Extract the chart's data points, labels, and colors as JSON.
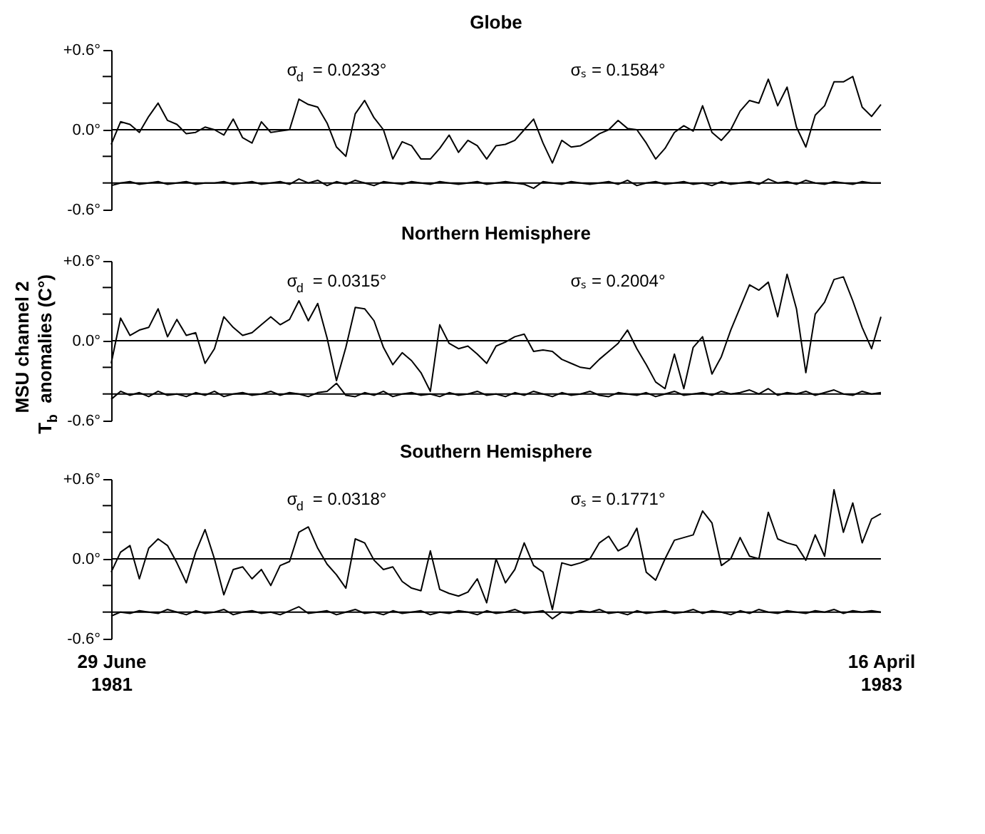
{
  "chart_data": [
    {
      "type": "line",
      "title": "Globe",
      "annotations": [
        "σ$_{d}$ = 0.0233°",
        "σₛ = 0.1584°"
      ],
      "x": [
        "1981-06-29",
        "1981-07-07",
        "1981-07-15",
        "1981-07-23",
        "1981-07-31",
        "1981-08-08",
        "1981-08-16",
        "1981-08-24",
        "1981-09-01",
        "1981-09-09",
        "1981-09-17",
        "1981-09-25",
        "1981-10-03",
        "1981-10-11",
        "1981-10-19",
        "1981-10-27",
        "1981-11-04",
        "1981-11-12",
        "1981-11-20",
        "1981-11-28",
        "1981-12-06",
        "1981-12-14",
        "1981-12-22",
        "1981-12-30",
        "1982-01-07",
        "1982-01-15",
        "1982-01-23",
        "1982-01-31",
        "1982-02-08",
        "1982-02-16",
        "1982-02-24",
        "1982-03-04",
        "1982-03-12",
        "1982-03-20",
        "1982-03-28",
        "1982-04-05",
        "1982-04-13",
        "1982-04-21",
        "1982-04-29",
        "1982-05-07",
        "1982-05-15",
        "1982-05-23",
        "1982-05-31",
        "1982-06-08",
        "1982-06-16",
        "1982-06-24",
        "1982-07-02",
        "1982-07-10",
        "1982-07-18",
        "1982-07-26",
        "1982-08-03",
        "1982-08-11",
        "1982-08-19",
        "1982-08-27",
        "1982-09-04",
        "1982-09-12",
        "1982-09-20",
        "1982-09-28",
        "1982-10-06",
        "1982-10-14",
        "1982-10-22",
        "1982-10-30",
        "1982-11-07",
        "1982-11-15",
        "1982-11-23",
        "1982-12-01",
        "1982-12-09",
        "1982-12-17",
        "1982-12-25",
        "1983-01-02",
        "1983-01-10",
        "1983-01-18",
        "1983-01-26",
        "1983-02-03",
        "1983-02-11",
        "1983-02-19",
        "1983-02-27",
        "1983-03-07",
        "1983-03-15",
        "1983-03-23",
        "1983-03-31",
        "1983-04-08",
        "1983-04-16"
      ],
      "series": [
        {
          "color": "#000000",
          "values": [
            -0.11,
            0.06,
            0.04,
            -0.02,
            0.1,
            0.2,
            0.07,
            0.04,
            -0.03,
            -0.02,
            0.02,
            0.0,
            -0.04,
            0.08,
            -0.06,
            -0.1,
            0.06,
            -0.02,
            -0.01,
            0.0,
            0.23,
            0.19,
            0.17,
            0.05,
            -0.13,
            -0.2,
            0.12,
            0.22,
            0.09,
            0.0,
            -0.22,
            -0.09,
            -0.12,
            -0.22,
            -0.22,
            -0.14,
            -0.04,
            -0.17,
            -0.08,
            -0.12,
            -0.22,
            -0.12,
            -0.11,
            -0.08,
            0.0,
            0.08,
            -0.1,
            -0.25,
            -0.08,
            -0.13,
            -0.12,
            -0.08,
            -0.03,
            0.0,
            0.07,
            0.01,
            0.0,
            -0.1,
            -0.22,
            -0.14,
            -0.02,
            0.03,
            -0.01,
            0.18,
            -0.02,
            -0.08,
            0.0,
            0.14,
            0.22,
            0.2,
            0.38,
            0.18,
            0.32,
            0.02,
            -0.13,
            0.11,
            0.18,
            0.36,
            0.36,
            0.4,
            0.17,
            0.1,
            0.19
          ]
        },
        {
          "color": "#000000",
          "values": [
            -0.42,
            -0.4,
            -0.39,
            -0.41,
            -0.4,
            -0.39,
            -0.41,
            -0.4,
            -0.39,
            -0.41,
            -0.4,
            -0.4,
            -0.39,
            -0.41,
            -0.4,
            -0.39,
            -0.41,
            -0.4,
            -0.39,
            -0.41,
            -0.37,
            -0.4,
            -0.38,
            -0.42,
            -0.39,
            -0.41,
            -0.38,
            -0.4,
            -0.42,
            -0.39,
            -0.4,
            -0.41,
            -0.39,
            -0.4,
            -0.41,
            -0.39,
            -0.4,
            -0.41,
            -0.4,
            -0.39,
            -0.41,
            -0.4,
            -0.39,
            -0.4,
            -0.41,
            -0.44,
            -0.39,
            -0.4,
            -0.41,
            -0.39,
            -0.4,
            -0.41,
            -0.4,
            -0.39,
            -0.41,
            -0.38,
            -0.42,
            -0.4,
            -0.39,
            -0.41,
            -0.4,
            -0.39,
            -0.41,
            -0.4,
            -0.42,
            -0.39,
            -0.41,
            -0.4,
            -0.39,
            -0.41,
            -0.37,
            -0.4,
            -0.39,
            -0.41,
            -0.38,
            -0.4,
            -0.41,
            -0.39,
            -0.4,
            -0.41,
            -0.39,
            -0.4,
            -0.4
          ]
        }
      ],
      "xlim": [
        "1981-06-29",
        "1983-04-16"
      ],
      "ylim": [
        -0.6,
        0.6
      ],
      "yticks": [
        {
          "value": -0.6,
          "label": "-0.6°"
        },
        {
          "value": -0.4,
          "label": null
        },
        {
          "value": -0.2,
          "label": null
        },
        {
          "value": 0.0,
          "label": "0.0°"
        },
        {
          "value": 0.2,
          "label": null
        },
        {
          "value": 0.4,
          "label": null
        },
        {
          "value": 0.6,
          "label": "+0.6°"
        }
      ],
      "ref_lines": [
        {
          "axis": "y",
          "value": 0.0,
          "color": "#000000"
        },
        {
          "axis": "y",
          "value": -0.4,
          "color": "#000000"
        }
      ],
      "tick_labels": "y",
      "grid": false
    },
    {
      "type": "line",
      "title": "Northern Hemisphere",
      "ylabel": "MSU channel 2\nT$_{b}$ anomalies (C°)",
      "annotations": [
        "σ$_{d}$ = 0.0315°",
        "σₛ = 0.2004°"
      ],
      "x": [
        "1981-06-29",
        "1981-07-07",
        "1981-07-15",
        "1981-07-23",
        "1981-07-31",
        "1981-08-08",
        "1981-08-16",
        "1981-08-24",
        "1981-09-01",
        "1981-09-09",
        "1981-09-17",
        "1981-09-25",
        "1981-10-03",
        "1981-10-11",
        "1981-10-19",
        "1981-10-27",
        "1981-11-04",
        "1981-11-12",
        "1981-11-20",
        "1981-11-28",
        "1981-12-06",
        "1981-12-14",
        "1981-12-22",
        "1981-12-30",
        "1982-01-07",
        "1982-01-15",
        "1982-01-23",
        "1982-01-31",
        "1982-02-08",
        "1982-02-16",
        "1982-02-24",
        "1982-03-04",
        "1982-03-12",
        "1982-03-20",
        "1982-03-28",
        "1982-04-05",
        "1982-04-13",
        "1982-04-21",
        "1982-04-29",
        "1982-05-07",
        "1982-05-15",
        "1982-05-23",
        "1982-05-31",
        "1982-06-08",
        "1982-06-16",
        "1982-06-24",
        "1982-07-02",
        "1982-07-10",
        "1982-07-18",
        "1982-07-26",
        "1982-08-03",
        "1982-08-11",
        "1982-08-19",
        "1982-08-27",
        "1982-09-04",
        "1982-09-12",
        "1982-09-20",
        "1982-09-28",
        "1982-10-06",
        "1982-10-14",
        "1982-10-22",
        "1982-10-30",
        "1982-11-07",
        "1982-11-15",
        "1982-11-23",
        "1982-12-01",
        "1982-12-09",
        "1982-12-17",
        "1982-12-25",
        "1983-01-02",
        "1983-01-10",
        "1983-01-18",
        "1983-01-26",
        "1983-02-03",
        "1983-02-11",
        "1983-02-19",
        "1983-02-27",
        "1983-03-07",
        "1983-03-15",
        "1983-03-23",
        "1983-03-31",
        "1983-04-08",
        "1983-04-16"
      ],
      "series": [
        {
          "color": "#000000",
          "values": [
            -0.17,
            0.17,
            0.04,
            0.08,
            0.1,
            0.24,
            0.03,
            0.16,
            0.04,
            0.06,
            -0.17,
            -0.06,
            0.18,
            0.1,
            0.04,
            0.06,
            0.12,
            0.18,
            0.12,
            0.16,
            0.3,
            0.15,
            0.28,
            0.02,
            -0.3,
            -0.05,
            0.25,
            0.24,
            0.15,
            -0.05,
            -0.18,
            -0.09,
            -0.15,
            -0.24,
            -0.38,
            0.12,
            -0.02,
            -0.06,
            -0.04,
            -0.1,
            -0.17,
            -0.04,
            -0.01,
            0.03,
            0.05,
            -0.08,
            -0.07,
            -0.08,
            -0.14,
            -0.17,
            -0.2,
            -0.21,
            -0.14,
            -0.08,
            -0.02,
            0.08,
            -0.06,
            -0.18,
            -0.31,
            -0.36,
            -0.1,
            -0.36,
            -0.05,
            0.03,
            -0.25,
            -0.12,
            0.08,
            0.25,
            0.42,
            0.38,
            0.44,
            0.18,
            0.5,
            0.24,
            -0.24,
            0.2,
            0.29,
            0.46,
            0.48,
            0.3,
            0.1,
            -0.06,
            0.18
          ]
        },
        {
          "color": "#000000",
          "values": [
            -0.44,
            -0.38,
            -0.41,
            -0.39,
            -0.42,
            -0.38,
            -0.41,
            -0.4,
            -0.42,
            -0.39,
            -0.41,
            -0.38,
            -0.42,
            -0.4,
            -0.39,
            -0.41,
            -0.4,
            -0.38,
            -0.41,
            -0.39,
            -0.4,
            -0.42,
            -0.39,
            -0.38,
            -0.32,
            -0.41,
            -0.42,
            -0.39,
            -0.41,
            -0.38,
            -0.42,
            -0.4,
            -0.39,
            -0.41,
            -0.4,
            -0.42,
            -0.39,
            -0.41,
            -0.4,
            -0.38,
            -0.41,
            -0.4,
            -0.42,
            -0.39,
            -0.41,
            -0.38,
            -0.4,
            -0.42,
            -0.39,
            -0.41,
            -0.4,
            -0.38,
            -0.41,
            -0.42,
            -0.39,
            -0.4,
            -0.41,
            -0.39,
            -0.42,
            -0.4,
            -0.38,
            -0.41,
            -0.4,
            -0.39,
            -0.41,
            -0.38,
            -0.4,
            -0.39,
            -0.37,
            -0.4,
            -0.36,
            -0.41,
            -0.39,
            -0.4,
            -0.38,
            -0.41,
            -0.39,
            -0.37,
            -0.4,
            -0.41,
            -0.38,
            -0.4,
            -0.39
          ]
        }
      ],
      "xlim": [
        "1981-06-29",
        "1983-04-16"
      ],
      "ylim": [
        -0.6,
        0.6
      ],
      "yticks": [
        {
          "value": -0.6,
          "label": "-0.6°"
        },
        {
          "value": -0.4,
          "label": null
        },
        {
          "value": -0.2,
          "label": null
        },
        {
          "value": 0.0,
          "label": "0.0°"
        },
        {
          "value": 0.2,
          "label": null
        },
        {
          "value": 0.4,
          "label": null
        },
        {
          "value": 0.6,
          "label": "+0.6°"
        }
      ],
      "ref_lines": [
        {
          "axis": "y",
          "value": 0.0,
          "color": "#000000"
        },
        {
          "axis": "y",
          "value": -0.4,
          "color": "#000000"
        }
      ],
      "tick_labels": "y",
      "grid": false
    },
    {
      "type": "line",
      "title": "Southern Hemisphere",
      "annotations": [
        "σ$_{d}$ = 0.0318°",
        "σₛ = 0.1771°"
      ],
      "x": [
        "1981-06-29",
        "1981-07-07",
        "1981-07-15",
        "1981-07-23",
        "1981-07-31",
        "1981-08-08",
        "1981-08-16",
        "1981-08-24",
        "1981-09-01",
        "1981-09-09",
        "1981-09-17",
        "1981-09-25",
        "1981-10-03",
        "1981-10-11",
        "1981-10-19",
        "1981-10-27",
        "1981-11-04",
        "1981-11-12",
        "1981-11-20",
        "1981-11-28",
        "1981-12-06",
        "1981-12-14",
        "1981-12-22",
        "1981-12-30",
        "1982-01-07",
        "1982-01-15",
        "1982-01-23",
        "1982-01-31",
        "1982-02-08",
        "1982-02-16",
        "1982-02-24",
        "1982-03-04",
        "1982-03-12",
        "1982-03-20",
        "1982-03-28",
        "1982-04-05",
        "1982-04-13",
        "1982-04-21",
        "1982-04-29",
        "1982-05-07",
        "1982-05-15",
        "1982-05-23",
        "1982-05-31",
        "1982-06-08",
        "1982-06-16",
        "1982-06-24",
        "1982-07-02",
        "1982-07-10",
        "1982-07-18",
        "1982-07-26",
        "1982-08-03",
        "1982-08-11",
        "1982-08-19",
        "1982-08-27",
        "1982-09-04",
        "1982-09-12",
        "1982-09-20",
        "1982-09-28",
        "1982-10-06",
        "1982-10-14",
        "1982-10-22",
        "1982-10-30",
        "1982-11-07",
        "1982-11-15",
        "1982-11-23",
        "1982-12-01",
        "1982-12-09",
        "1982-12-17",
        "1982-12-25",
        "1983-01-02",
        "1983-01-10",
        "1983-01-18",
        "1983-01-26",
        "1983-02-03",
        "1983-02-11",
        "1983-02-19",
        "1983-02-27",
        "1983-03-07",
        "1983-03-15",
        "1983-03-23",
        "1983-03-31",
        "1983-04-08",
        "1983-04-16"
      ],
      "series": [
        {
          "color": "#000000",
          "values": [
            -0.1,
            0.05,
            0.1,
            -0.15,
            0.08,
            0.15,
            0.1,
            -0.03,
            -0.18,
            0.05,
            0.22,
            0.0,
            -0.27,
            -0.08,
            -0.06,
            -0.15,
            -0.08,
            -0.2,
            -0.05,
            -0.02,
            0.2,
            0.24,
            0.08,
            -0.04,
            -0.12,
            -0.22,
            0.15,
            0.12,
            -0.01,
            -0.08,
            -0.06,
            -0.17,
            -0.22,
            -0.24,
            0.06,
            -0.23,
            -0.26,
            -0.28,
            -0.25,
            -0.15,
            -0.33,
            0.0,
            -0.18,
            -0.08,
            0.12,
            -0.05,
            -0.1,
            -0.38,
            -0.03,
            -0.05,
            -0.03,
            0.0,
            0.12,
            0.17,
            0.06,
            0.1,
            0.23,
            -0.1,
            -0.16,
            0.0,
            0.14,
            0.16,
            0.18,
            0.36,
            0.27,
            -0.05,
            0.0,
            0.16,
            0.02,
            0.0,
            0.35,
            0.15,
            0.12,
            0.1,
            -0.01,
            0.18,
            0.02,
            0.52,
            0.2,
            0.42,
            0.12,
            0.3,
            0.34
          ]
        },
        {
          "color": "#000000",
          "values": [
            -0.43,
            -0.4,
            -0.41,
            -0.39,
            -0.4,
            -0.41,
            -0.38,
            -0.4,
            -0.42,
            -0.39,
            -0.41,
            -0.4,
            -0.38,
            -0.42,
            -0.4,
            -0.39,
            -0.41,
            -0.4,
            -0.42,
            -0.39,
            -0.36,
            -0.41,
            -0.4,
            -0.39,
            -0.42,
            -0.4,
            -0.38,
            -0.41,
            -0.4,
            -0.42,
            -0.39,
            -0.41,
            -0.4,
            -0.39,
            -0.42,
            -0.4,
            -0.41,
            -0.39,
            -0.4,
            -0.42,
            -0.39,
            -0.41,
            -0.4,
            -0.38,
            -0.41,
            -0.4,
            -0.39,
            -0.45,
            -0.4,
            -0.41,
            -0.39,
            -0.4,
            -0.38,
            -0.41,
            -0.4,
            -0.42,
            -0.39,
            -0.41,
            -0.4,
            -0.39,
            -0.41,
            -0.4,
            -0.38,
            -0.41,
            -0.39,
            -0.4,
            -0.42,
            -0.39,
            -0.41,
            -0.38,
            -0.4,
            -0.41,
            -0.39,
            -0.4,
            -0.41,
            -0.39,
            -0.4,
            -0.38,
            -0.41,
            -0.39,
            -0.4,
            -0.39,
            -0.4
          ]
        }
      ],
      "xlim": [
        "1981-06-29",
        "1983-04-16"
      ],
      "ylim": [
        -0.6,
        0.6
      ],
      "xticks": [
        {
          "value": "1981-06-29",
          "label": "29 June 1981"
        },
        {
          "value": "1983-04-16",
          "label": "16 April 1983"
        }
      ],
      "yticks": [
        {
          "value": -0.6,
          "label": "-0.6°"
        },
        {
          "value": -0.4,
          "label": null
        },
        {
          "value": -0.2,
          "label": null
        },
        {
          "value": 0.0,
          "label": "0.0°"
        },
        {
          "value": 0.2,
          "label": null
        },
        {
          "value": 0.4,
          "label": null
        },
        {
          "value": 0.6,
          "label": "+0.6°"
        }
      ],
      "ref_lines": [
        {
          "axis": "y",
          "value": 0.0,
          "color": "#000000"
        },
        {
          "axis": "y",
          "value": -0.4,
          "color": "#000000"
        }
      ],
      "grid": false
    }
  ]
}
